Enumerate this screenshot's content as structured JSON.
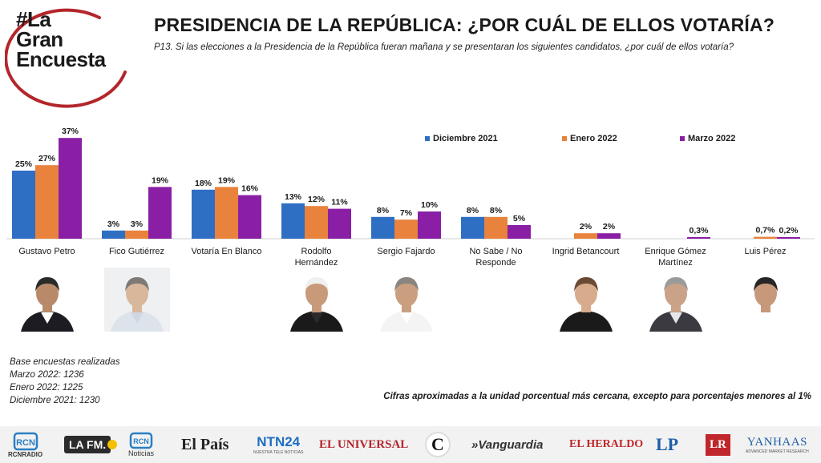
{
  "logo": {
    "line1": "#La",
    "line2": "Gran",
    "line3": "Encuesta",
    "ring_color": "#b3262b"
  },
  "header": {
    "title": "PRESIDENCIA DE LA REPÚBLICA: ¿POR CUÁL DE ELLOS VOTARÍA?",
    "question": "P13. Si las elecciones a la Presidencia de la República fueran mañana y se presentaran los siguientes candidatos, ¿por cuál de ellos votaría?"
  },
  "chart_data": {
    "type": "bar",
    "categories": [
      "Gustavo Petro",
      "Fico Gutiérrez",
      "Votaría En Blanco",
      "Rodolfo Hernández",
      "Sergio Fajardo",
      "No Sabe / No Responde",
      "Ingrid Betancourt",
      "Enrique Gómez Martínez",
      "Luis Pérez"
    ],
    "category_lines": [
      [
        "Gustavo Petro"
      ],
      [
        "Fico Gutiérrez"
      ],
      [
        "Votaría En Blanco"
      ],
      [
        "Rodolfo",
        "Hernández"
      ],
      [
        "Sergio Fajardo"
      ],
      [
        "No Sabe / No",
        "Responde"
      ],
      [
        "Ingrid Betancourt"
      ],
      [
        "Enrique Gómez",
        "Martínez"
      ],
      [
        "Luis Pérez"
      ]
    ],
    "series": [
      {
        "name": "Diciembre 2021",
        "color": "#2e6fc4",
        "values": [
          25,
          3,
          18,
          13,
          8,
          8,
          null,
          null,
          null
        ],
        "labels": [
          "25%",
          "3%",
          "18%",
          "13%",
          "8%",
          "8%",
          "",
          "",
          ""
        ]
      },
      {
        "name": "Enero 2022",
        "color": "#e8823c",
        "values": [
          27,
          3,
          19,
          12,
          7,
          8,
          2,
          null,
          0.7
        ],
        "labels": [
          "27%",
          "3%",
          "19%",
          "12%",
          "7%",
          "8%",
          "2%",
          "",
          "0,7%"
        ]
      },
      {
        "name": "Marzo 2022",
        "color": "#8a1fa6",
        "values": [
          37,
          19,
          16,
          11,
          10,
          5,
          2,
          0.3,
          0.2
        ],
        "labels": [
          "37%",
          "19%",
          "16%",
          "11%",
          "10%",
          "5%",
          "2%",
          "0,3%",
          "0,2%"
        ]
      }
    ],
    "ylim": [
      0,
      40
    ],
    "legend_position": "top-right"
  },
  "photos": [
    {
      "category": "Gustavo Petro",
      "bg": "#ffffff",
      "skin": "#b98a6a",
      "hair": "#2a2a2a",
      "suit": "#1c1c22",
      "shirt": "#ffffff"
    },
    {
      "category": "Fico Gutiérrez",
      "bg": "#eef0f2",
      "skin": "#d9b79a",
      "hair": "#7d7a76",
      "suit": "#dde3ea",
      "shirt": "#cfd8e2"
    },
    {
      "category": "Rodolfo Hernández",
      "bg": "#ffffff",
      "skin": "#c99a7a",
      "hair": "#f0f0f0",
      "suit": "#1a1a1a",
      "shirt": "#2b2b2b"
    },
    {
      "category": "Sergio Fajardo",
      "bg": "#ffffff",
      "skin": "#c99f80",
      "hair": "#8a8580",
      "suit": "#f4f4f4",
      "shirt": "#ffffff"
    },
    {
      "category": "Ingrid Betancourt",
      "bg": "#ffffff",
      "skin": "#d8ab8c",
      "hair": "#6b4a34",
      "suit": "#1a1a1a",
      "shirt": "#1a1a1a"
    },
    {
      "category": "Enrique Gómez Martínez",
      "bg": "#ffffff",
      "skin": "#c9a288",
      "hair": "#9a9a9a",
      "suit": "#3a3a40",
      "shirt": "#e6e6ea"
    },
    {
      "category": "Luis Pérez",
      "bg": "#ffffff",
      "skin": "#c8987a",
      "hair": "#262626",
      "suit": "#ffffff",
      "shirt": "#ffffff"
    }
  ],
  "base_notes": {
    "title": "Base encuestas realizadas",
    "lines": [
      "Marzo 2022: 1236",
      "Enero 2022: 1225",
      "Diciembre 2021: 1230"
    ]
  },
  "footnote": "Cifras aproximadas a la unidad porcentual más cercana, excepto para porcentajes menores al 1%",
  "sponsors": {
    "rcn_radio": "RCNRADIO",
    "lafm": "LA FM.",
    "noticias": "Noticias",
    "el_pais": "El País",
    "ntn24": "NTN24",
    "ntn24_sub": "NUESTRA TELE NOTICIAS",
    "el_universal": "EL UNIVERSAL",
    "el_colombiano": "C",
    "vanguardia": "»Vanguardia",
    "el_heraldo": "EL HERALDO",
    "lp": "LP",
    "lr": "LR",
    "yanhaas": "YANHAAS",
    "yanhaas_sub": "ADVANCED MARKET RESEARCH"
  }
}
